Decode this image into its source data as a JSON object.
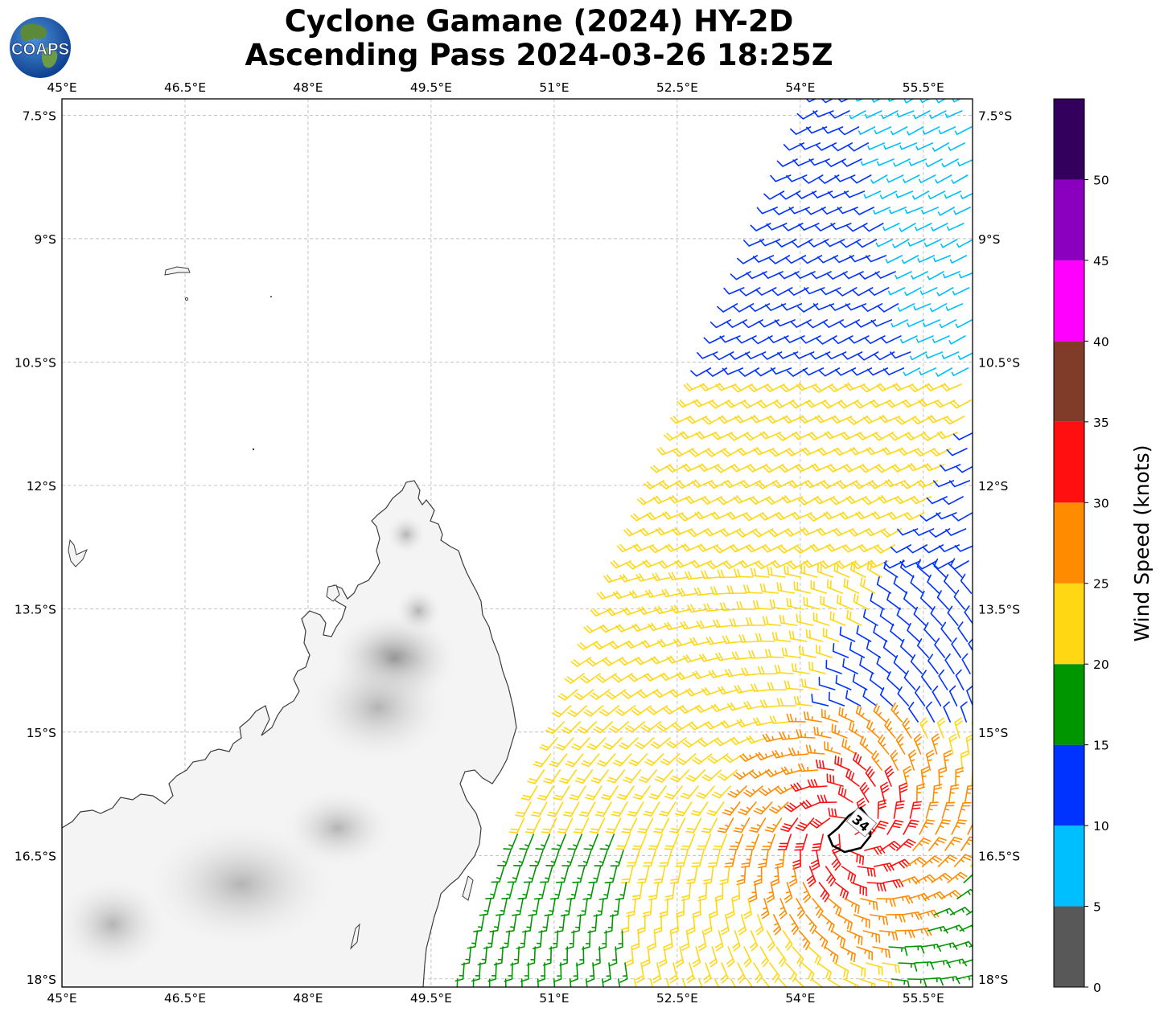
{
  "title": {
    "line1": "Cyclone Gamane (2024) HY-2D",
    "line2": "Ascending Pass 2024-03-26 18:25Z"
  },
  "logo": {
    "text": "COAPS",
    "icon": "globe-logo-icon"
  },
  "map": {
    "lon_ticks": [
      "45°E",
      "46.5°E",
      "48°E",
      "49.5°E",
      "51°E",
      "52.5°E",
      "54°E",
      "55.5°E"
    ],
    "lat_ticks": [
      "7.5°S",
      "9°S",
      "10.5°S",
      "12°S",
      "13.5°S",
      "15°S",
      "16.5°S",
      "18°S"
    ],
    "lon_range": [
      45,
      56.1
    ],
    "lat_range": [
      -7.3,
      -18.1
    ],
    "gridlines": true,
    "contour_label": "34",
    "contour_value_knots": 34
  },
  "colorbar": {
    "label": "Wind Speed (knots)",
    "ticks": [
      "0",
      "5",
      "10",
      "15",
      "20",
      "25",
      "30",
      "35",
      "40",
      "45",
      "50"
    ],
    "colors": [
      "#585858",
      "#00bfff",
      "#0033ff",
      "#009600",
      "#ffd713",
      "#ff8c00",
      "#ff0f0f",
      "#803c28",
      "#ff00ff",
      "#8a00be",
      "#33005e"
    ]
  }
}
